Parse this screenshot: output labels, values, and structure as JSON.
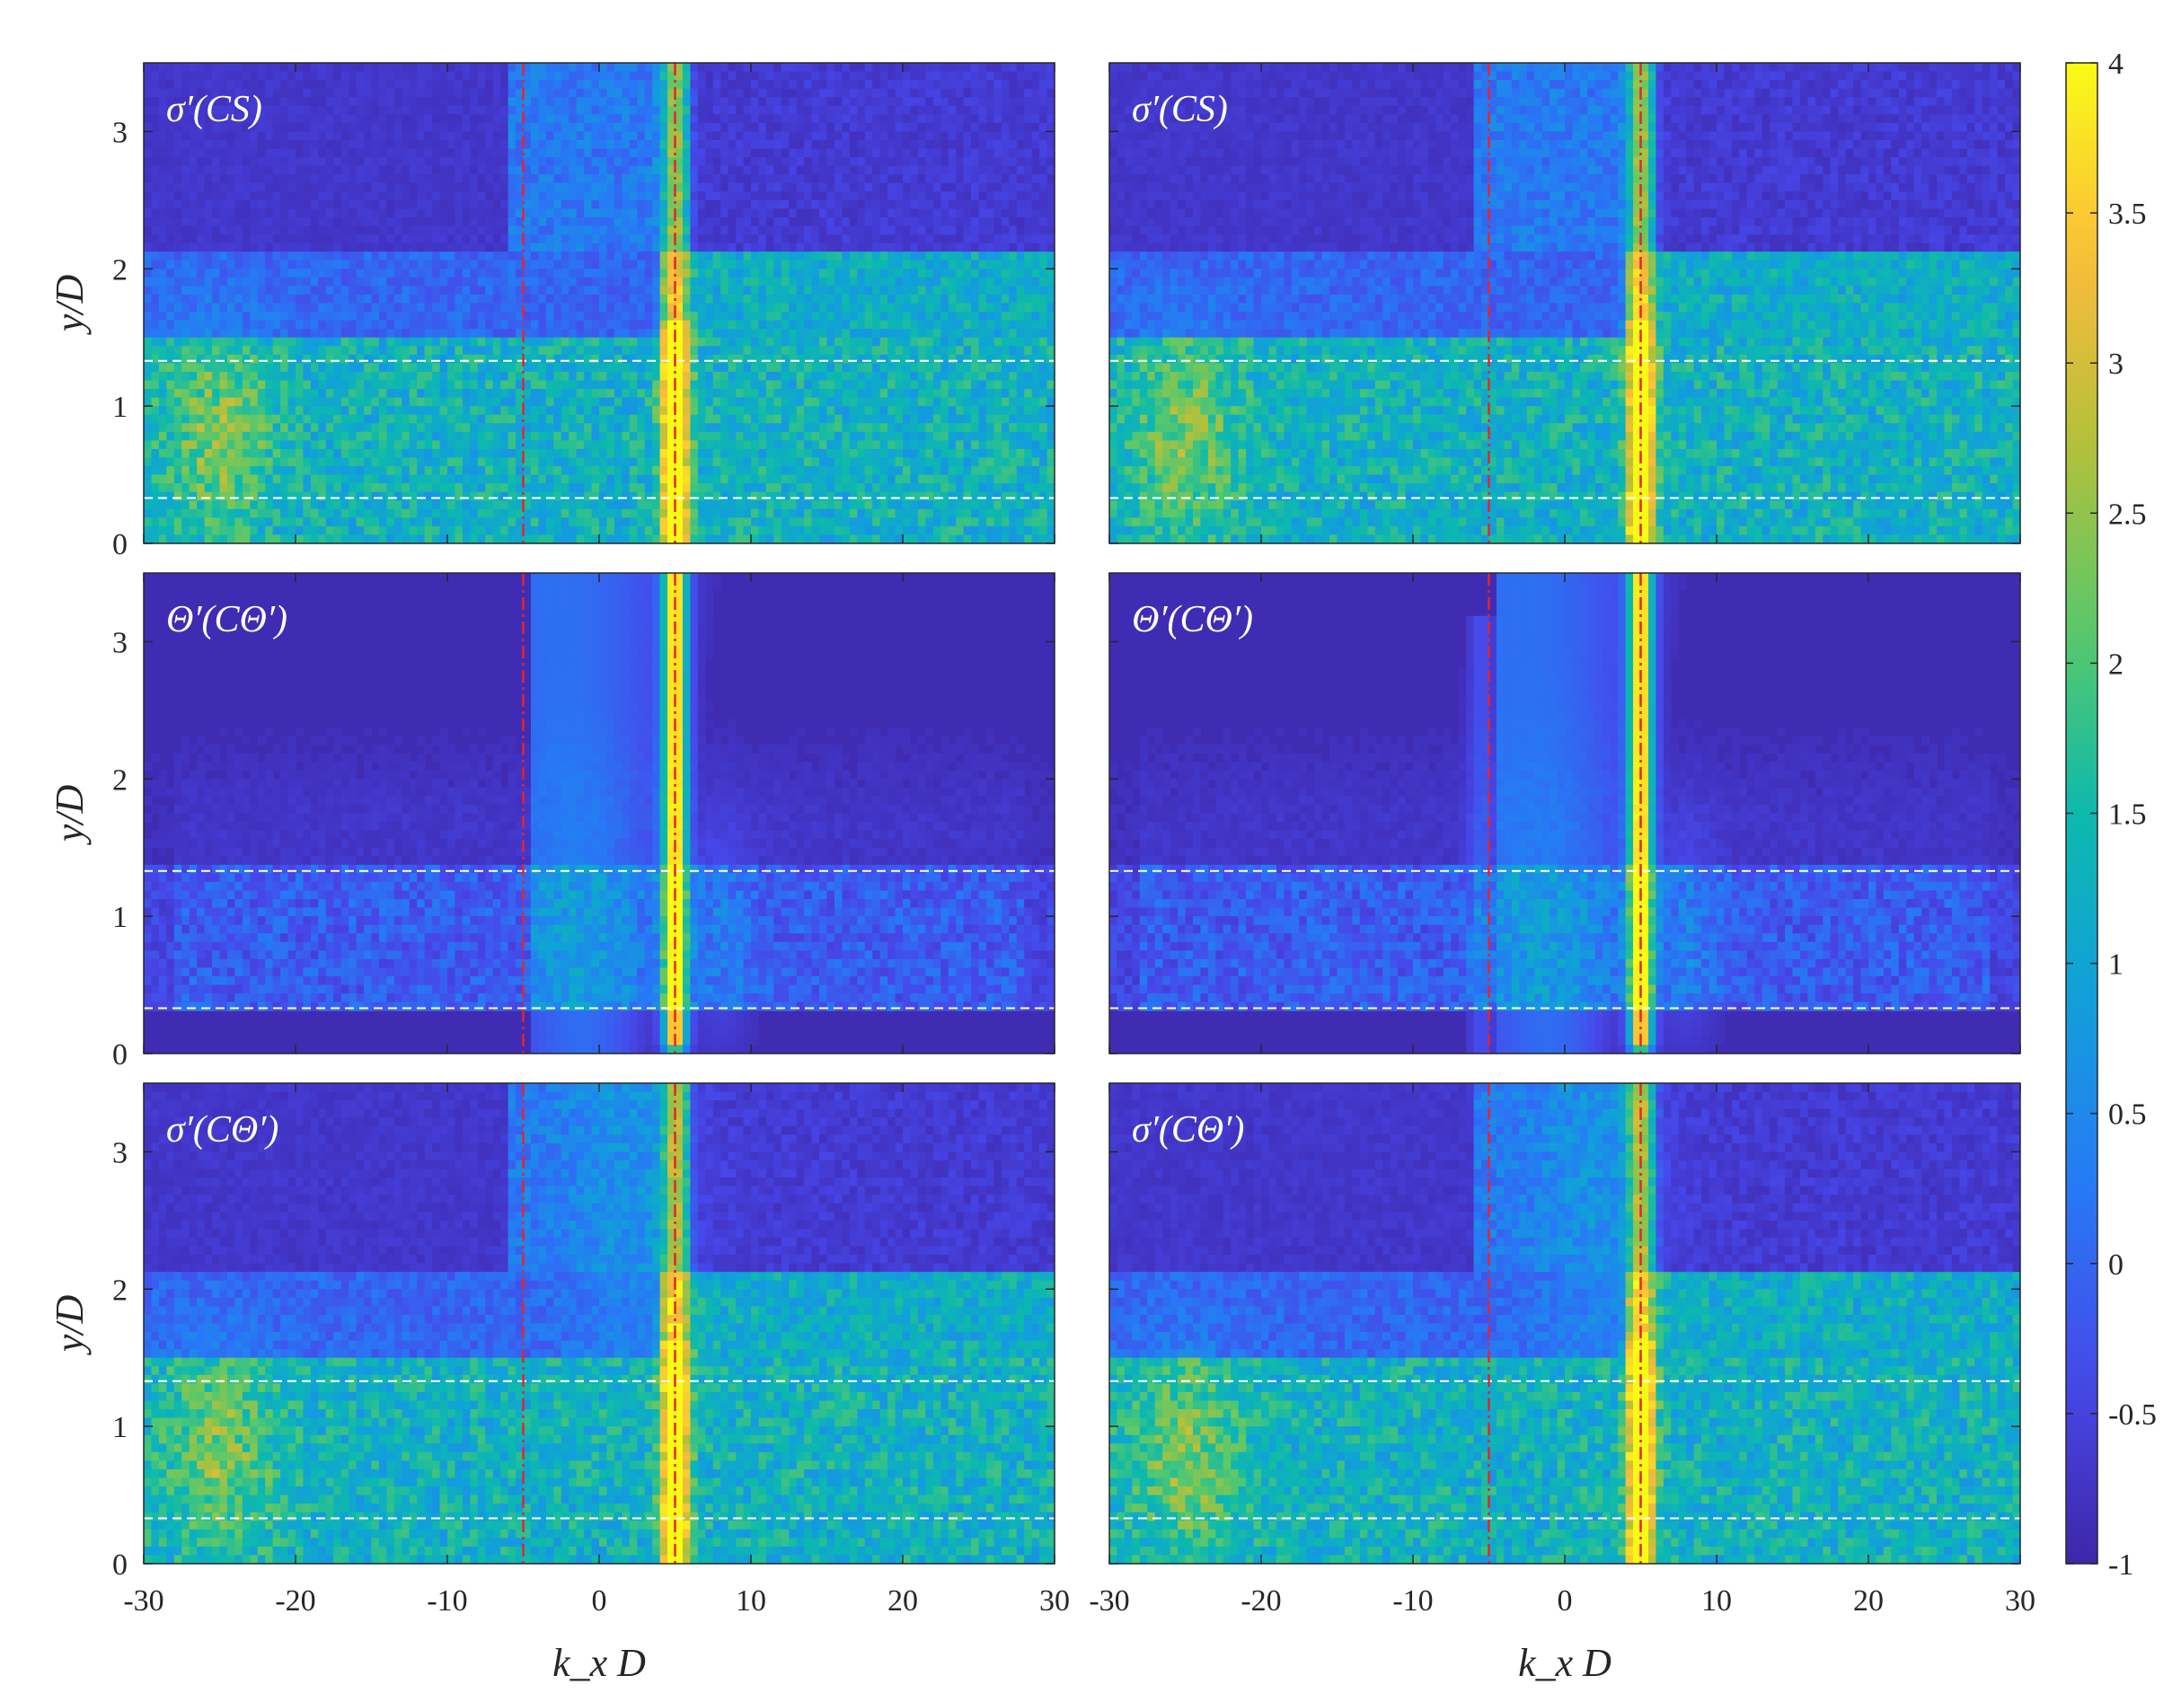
{
  "chart_data": {
    "type": "heatmap",
    "x_label": "k_x D",
    "y_label": "y/D",
    "x_range": [
      -30,
      30
    ],
    "y_range": [
      0,
      3.5
    ],
    "x_ticks": [
      -30,
      -20,
      -10,
      0,
      10,
      20,
      30
    ],
    "y_ticks": [
      0,
      1,
      2,
      3
    ],
    "colorbar": {
      "range": [
        -1,
        4
      ],
      "ticks": [
        -1,
        -0.5,
        0,
        0.5,
        1,
        1.5,
        2,
        2.5,
        3,
        3.5,
        4
      ],
      "colormap": "parula"
    },
    "reference_lines": {
      "vertical_red_dashdot_kxD": [
        -5,
        5
      ],
      "horizontal_white_dashed_yD": [
        0.33,
        1.33
      ]
    },
    "panels": [
      {
        "title": "σ′(CS)",
        "row": 1,
        "col": 1,
        "peak_kxD": 5,
        "peak_value": 3.8
      },
      {
        "title": "σ′(CS)",
        "row": 1,
        "col": 2,
        "peak_kxD": 5,
        "peak_value": 4.0
      },
      {
        "title": "Θ′(CΘ′)",
        "row": 2,
        "col": 1,
        "peak_kxD": 5,
        "peak_value": 4.0
      },
      {
        "title": "Θ′(CΘ′)",
        "row": 2,
        "col": 2,
        "peak_kxD": 5,
        "peak_value": 4.0
      },
      {
        "title": "σ′(CΘ′)",
        "row": 3,
        "col": 1,
        "peak_kxD": 5,
        "peak_value": 3.8
      },
      {
        "title": "σ′(CΘ′)",
        "row": 3,
        "col": 2,
        "peak_kxD": 5,
        "peak_value": 4.0
      }
    ]
  },
  "colors": {
    "low": "#3e26a8",
    "high": "#f9fb15",
    "red_line": "#e8232b",
    "white_line": "#ffffff"
  }
}
